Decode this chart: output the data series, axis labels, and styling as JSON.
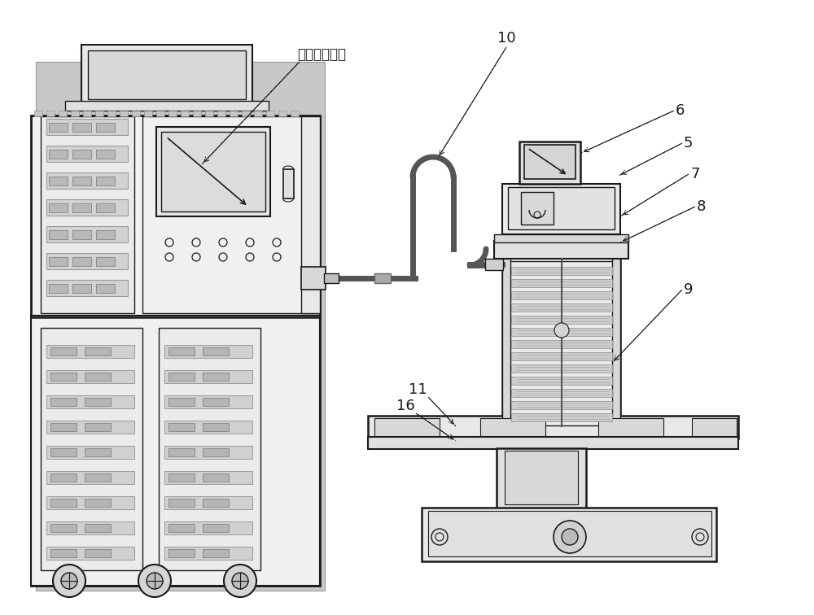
{
  "bg_color": "#ffffff",
  "lc": "#1a1a1a",
  "label_ts": "触摸屏控制盒",
  "figsize": [
    10.0,
    7.56
  ],
  "dpi": 100
}
